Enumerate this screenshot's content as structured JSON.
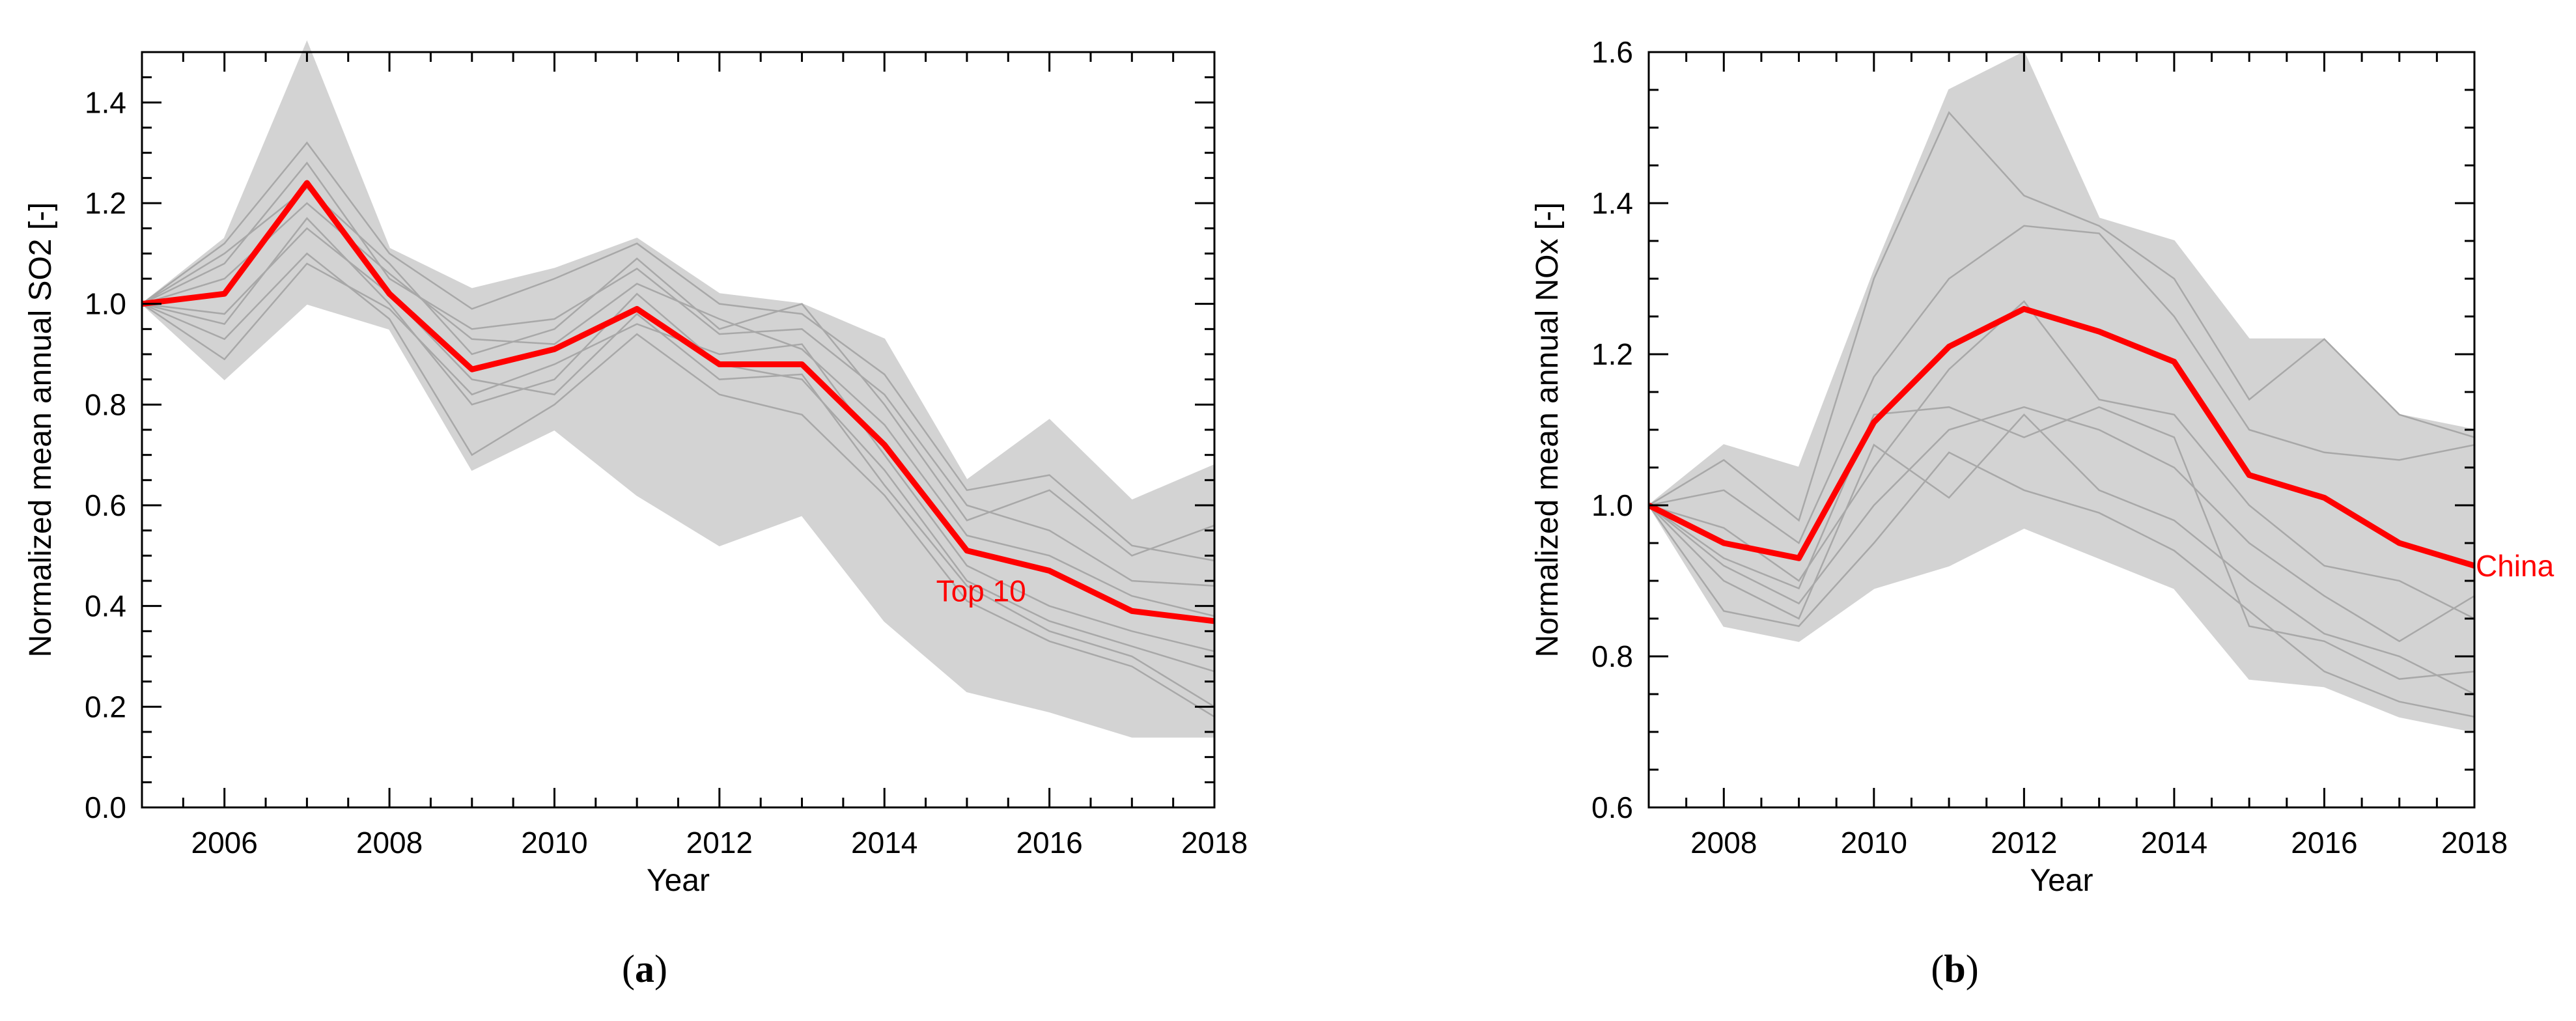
{
  "colors": {
    "highlight": "#ff0000",
    "envelope_fill": "#d3d3d3",
    "member_lines": "#a8a8a8",
    "axis": "#000000"
  },
  "chart_data": [
    {
      "type": "line",
      "panel_label": "a",
      "xlabel": "Year",
      "ylabel": "Normalized mean annual SO2 [-]",
      "xlim": [
        2005,
        2018
      ],
      "ylim": [
        0.0,
        1.5
      ],
      "xticks": [
        2006,
        2008,
        2010,
        2012,
        2014,
        2016,
        2018
      ],
      "xtick_labels": [
        "2006",
        "2008",
        "2010",
        "2012",
        "2014",
        "2016",
        "2018"
      ],
      "yticks": [
        0.0,
        0.2,
        0.4,
        0.6,
        0.8,
        1.0,
        1.2,
        1.4
      ],
      "ytick_labels": [
        "0.0",
        "0.2",
        "0.4",
        "0.6",
        "0.8",
        "1.0",
        "1.2",
        "1.4"
      ],
      "x": [
        2005,
        2006,
        2007,
        2008,
        2009,
        2010,
        2011,
        2012,
        2013,
        2014,
        2015,
        2016,
        2017,
        2018
      ],
      "envelope_upper": [
        1.0,
        1.13,
        1.52,
        1.11,
        1.03,
        1.07,
        1.13,
        1.02,
        1.0,
        0.93,
        0.65,
        0.77,
        0.61,
        0.68
      ],
      "envelope_lower": [
        1.0,
        0.85,
        1.0,
        0.95,
        0.67,
        0.75,
        0.62,
        0.52,
        0.58,
        0.37,
        0.23,
        0.19,
        0.14,
        0.14
      ],
      "series": [
        {
          "name": "Top 10",
          "highlight": true,
          "values": [
            1.0,
            1.02,
            1.24,
            1.02,
            0.87,
            0.91,
            0.99,
            0.88,
            0.88,
            0.72,
            0.51,
            0.47,
            0.39,
            0.37
          ]
        },
        {
          "values": [
            1.0,
            1.12,
            1.32,
            1.1,
            0.99,
            1.05,
            1.12,
            1.0,
            0.98,
            0.86,
            0.63,
            0.66,
            0.52,
            0.49
          ]
        },
        {
          "values": [
            1.0,
            1.08,
            1.28,
            1.05,
            0.95,
            0.97,
            1.07,
            0.94,
            0.95,
            0.82,
            0.6,
            0.55,
            0.45,
            0.44
          ]
        },
        {
          "values": [
            1.0,
            0.96,
            1.17,
            1.0,
            0.8,
            0.85,
            1.02,
            0.88,
            0.85,
            0.67,
            0.45,
            0.37,
            0.32,
            0.27
          ]
        },
        {
          "values": [
            1.0,
            0.93,
            1.1,
            0.97,
            0.7,
            0.8,
            0.94,
            0.82,
            0.78,
            0.62,
            0.41,
            0.33,
            0.28,
            0.18
          ]
        },
        {
          "values": [
            1.0,
            1.05,
            1.2,
            1.06,
            0.93,
            0.92,
            1.04,
            0.97,
            0.91,
            0.76,
            0.54,
            0.5,
            0.42,
            0.38
          ]
        },
        {
          "values": [
            1.0,
            0.89,
            1.08,
            0.99,
            0.82,
            0.88,
            0.96,
            0.9,
            0.92,
            0.7,
            0.48,
            0.4,
            0.35,
            0.31
          ]
        },
        {
          "values": [
            1.0,
            1.1,
            1.23,
            1.08,
            0.9,
            0.95,
            1.09,
            0.95,
            1.0,
            0.8,
            0.57,
            0.63,
            0.5,
            0.56
          ]
        },
        {
          "values": [
            1.0,
            0.98,
            1.15,
            1.02,
            0.85,
            0.82,
            0.98,
            0.85,
            0.86,
            0.64,
            0.44,
            0.35,
            0.3,
            0.2
          ]
        }
      ],
      "annotation": {
        "text": "Top 10",
        "x": 2015.1,
        "y": 0.43
      }
    },
    {
      "type": "line",
      "panel_label": "b",
      "xlabel": "Year",
      "ylabel": "Normalized mean annual NOx [-]",
      "xlim": [
        2007,
        2018
      ],
      "ylim": [
        0.6,
        1.6
      ],
      "xticks": [
        2008,
        2010,
        2012,
        2014,
        2016,
        2018
      ],
      "xtick_labels": [
        "2008",
        "2010",
        "2012",
        "2014",
        "2016",
        "2018"
      ],
      "yticks": [
        0.6,
        0.8,
        1.0,
        1.2,
        1.4,
        1.6
      ],
      "ytick_labels": [
        "0.6",
        "0.8",
        "1.0",
        "1.2",
        "1.4",
        "1.6"
      ],
      "x": [
        2007,
        2008,
        2009,
        2010,
        2011,
        2012,
        2013,
        2014,
        2015,
        2016,
        2017,
        2018
      ],
      "envelope_upper": [
        1.0,
        1.08,
        1.05,
        1.31,
        1.55,
        1.6,
        1.38,
        1.35,
        1.22,
        1.22,
        1.12,
        1.1
      ],
      "envelope_lower": [
        1.0,
        0.84,
        0.82,
        0.89,
        0.92,
        0.97,
        0.93,
        0.89,
        0.77,
        0.76,
        0.72,
        0.7
      ],
      "series": [
        {
          "name": "China",
          "highlight": true,
          "values": [
            1.0,
            0.95,
            0.93,
            1.11,
            1.21,
            1.26,
            1.23,
            1.19,
            1.04,
            1.01,
            0.95,
            0.92
          ]
        },
        {
          "values": [
            1.0,
            1.06,
            0.98,
            1.3,
            1.52,
            1.41,
            1.37,
            1.3,
            1.14,
            1.22,
            1.12,
            1.09
          ]
        },
        {
          "values": [
            1.0,
            1.02,
            0.95,
            1.17,
            1.3,
            1.37,
            1.36,
            1.25,
            1.1,
            1.07,
            1.06,
            1.08
          ]
        },
        {
          "values": [
            1.0,
            0.97,
            0.9,
            1.05,
            1.18,
            1.27,
            1.14,
            1.12,
            1.0,
            0.92,
            0.9,
            0.85
          ]
        },
        {
          "values": [
            1.0,
            0.92,
            0.87,
            1.0,
            1.1,
            1.13,
            1.1,
            1.05,
            0.95,
            0.88,
            0.82,
            0.88
          ]
        },
        {
          "values": [
            1.0,
            0.9,
            0.85,
            1.08,
            1.01,
            1.12,
            1.02,
            0.98,
            0.9,
            0.83,
            0.8,
            0.75
          ]
        },
        {
          "values": [
            1.0,
            0.86,
            0.84,
            0.95,
            1.07,
            1.02,
            0.99,
            0.94,
            0.86,
            0.78,
            0.74,
            0.72
          ]
        },
        {
          "values": [
            1.0,
            0.93,
            0.89,
            1.12,
            1.13,
            1.09,
            1.13,
            1.09,
            0.84,
            0.82,
            0.77,
            0.78
          ]
        }
      ],
      "annotation": {
        "text": "China",
        "x": 2018,
        "y": 0.92
      }
    }
  ]
}
